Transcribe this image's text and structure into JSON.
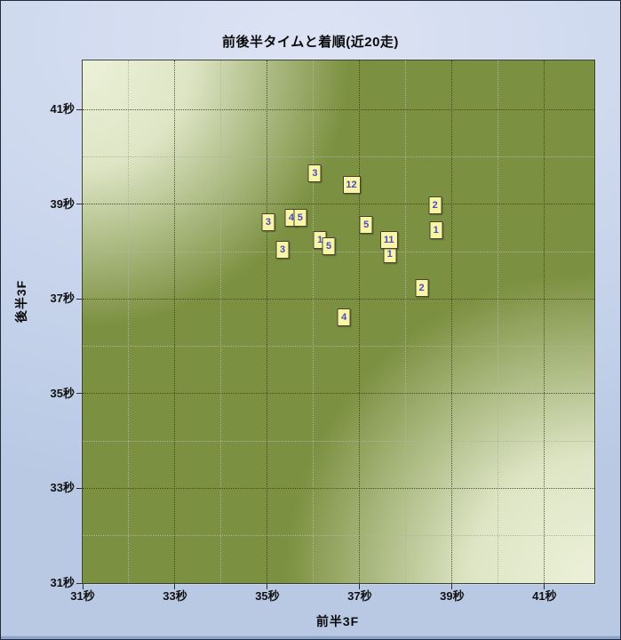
{
  "window": {
    "title": "前後半タイムと着順(近20走)"
  },
  "colors": {
    "outer_background_blue": "#cdd8ee",
    "frame_border": "#232b3a",
    "bottom_strip_blue": "#8ca4ca",
    "plot_green": "#7b9040",
    "plot_pale_corner": "#ecf1d8",
    "major_grid": "#38401c",
    "minor_grid": "#afb69b",
    "marker_bg": "#f8f5a4",
    "marker_border": "#43432f",
    "marker_text": "#4a4ac2",
    "text_black": "#0a0a0a"
  },
  "chart_data": {
    "type": "scatter",
    "title": "前後半タイムと着順(近20走)",
    "xlabel": "前半3F",
    "ylabel": "後半3F",
    "unit": "秒",
    "xlim": [
      31,
      42.08
    ],
    "ylim": [
      31,
      42.04
    ],
    "grid": "major dotted dark at odd seconds, minor dotted light at even seconds",
    "legend_position": "none",
    "x_major_ticks": [
      {
        "value": 31,
        "label": "31秒"
      },
      {
        "value": 33,
        "label": "33秒"
      },
      {
        "value": 35,
        "label": "35秒"
      },
      {
        "value": 37,
        "label": "37秒"
      },
      {
        "value": 39,
        "label": "39秒"
      },
      {
        "value": 41,
        "label": "41秒"
      }
    ],
    "y_major_ticks": [
      {
        "value": 31,
        "label": "31秒"
      },
      {
        "value": 33,
        "label": "33秒"
      },
      {
        "value": 35,
        "label": "35秒"
      },
      {
        "value": 37,
        "label": "37秒"
      },
      {
        "value": 39,
        "label": "39秒"
      },
      {
        "value": 41,
        "label": "41秒"
      }
    ],
    "x_minor_ticks": [
      32,
      34,
      36,
      38,
      40
    ],
    "y_minor_ticks": [
      32,
      34,
      36,
      38,
      40
    ],
    "points": [
      {
        "label": "3",
        "x": 36.03,
        "y": 39.65
      },
      {
        "label": "12",
        "x": 36.82,
        "y": 39.42
      },
      {
        "label": "2",
        "x": 38.63,
        "y": 38.98
      },
      {
        "label": "1",
        "x": 38.65,
        "y": 38.45
      },
      {
        "label": "4",
        "x": 35.52,
        "y": 38.72
      },
      {
        "label": "5",
        "x": 35.71,
        "y": 38.72
      },
      {
        "label": "3",
        "x": 35.02,
        "y": 38.63
      },
      {
        "label": "5",
        "x": 37.14,
        "y": 38.56
      },
      {
        "label": "1",
        "x": 36.14,
        "y": 38.25
      },
      {
        "label": "5",
        "x": 36.33,
        "y": 38.12
      },
      {
        "label": "1",
        "x": 37.65,
        "y": 37.94
      },
      {
        "label": "11",
        "x": 37.63,
        "y": 38.24
      },
      {
        "label": "3",
        "x": 35.33,
        "y": 38.05
      },
      {
        "label": "2",
        "x": 38.34,
        "y": 37.24
      },
      {
        "label": "4",
        "x": 36.66,
        "y": 36.62
      }
    ]
  }
}
